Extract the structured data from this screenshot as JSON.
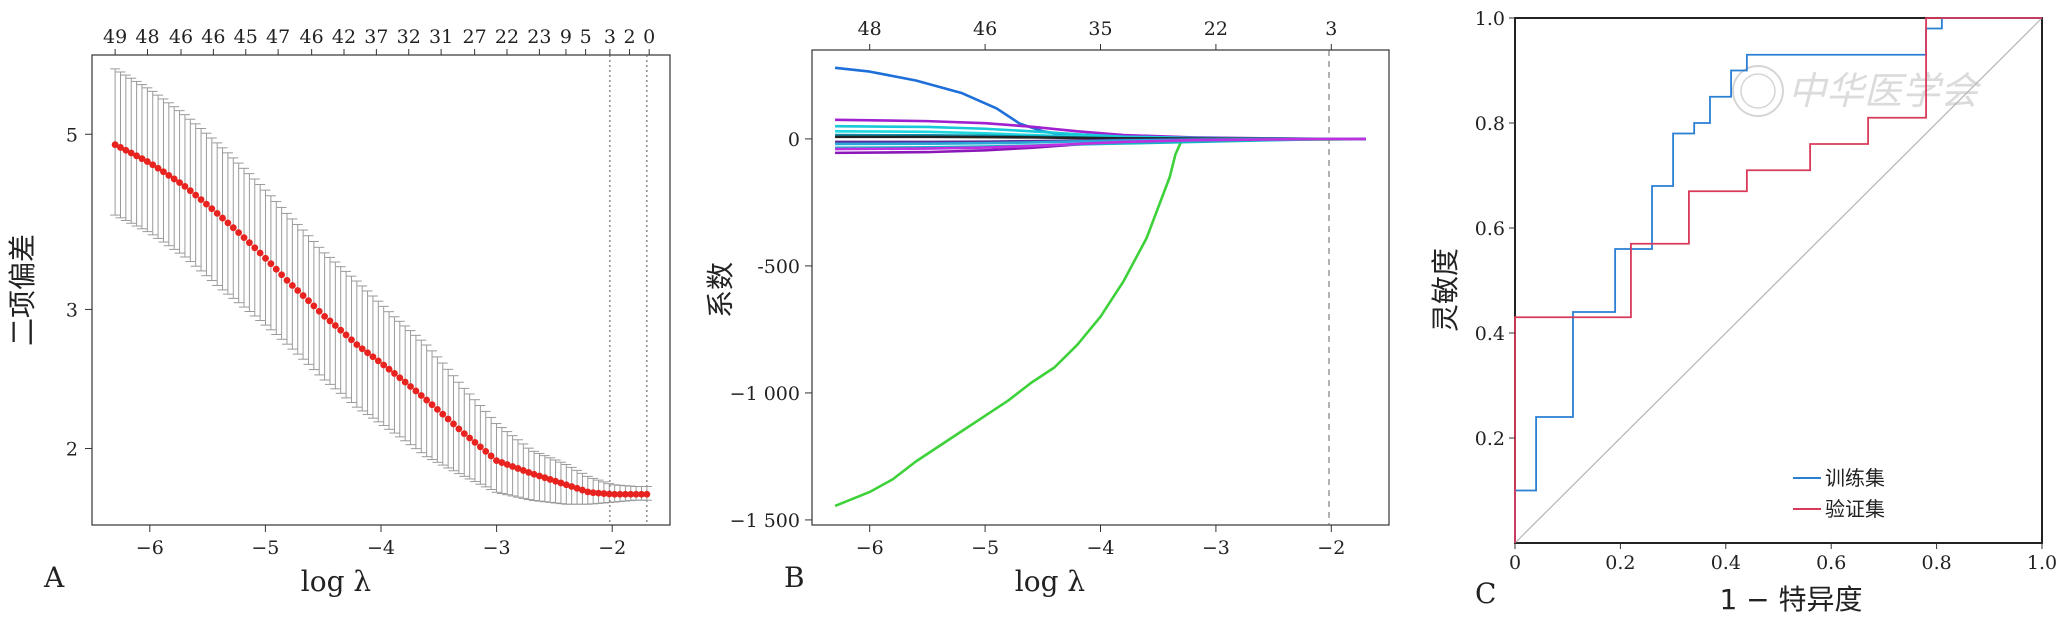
{
  "chart_data": [
    {
      "panel": "A",
      "type": "scatter",
      "xlabel": "log λ",
      "ylabel": "二项偏差",
      "xticks": [
        -6,
        -5,
        -4,
        -3,
        -2
      ],
      "yticks": [
        2,
        3,
        5
      ],
      "y_scale": "log",
      "xlim": [
        -6.5,
        -1.5
      ],
      "ylim": [
        1.6,
        6.3
      ],
      "top_labels": [
        "49",
        "48",
        "46",
        "46",
        "45",
        "47",
        "46",
        "42",
        "37",
        "32",
        "31",
        "27",
        "22",
        "23",
        "9",
        "5",
        "3",
        "2",
        "0"
      ],
      "top_label_x": [
        -6.3,
        -6.02,
        -5.73,
        -5.45,
        -5.17,
        -4.89,
        -4.6,
        -4.32,
        -4.04,
        -3.76,
        -3.48,
        -3.19,
        -2.91,
        -2.63,
        -2.4,
        -2.23,
        -2.02,
        -1.85,
        -1.68
      ],
      "vlines": [
        -2.02,
        -1.7
      ],
      "series": [
        {
          "x": [
            -6.3,
            -6.0,
            -5.7,
            -5.4,
            -5.1,
            -4.8,
            -4.5,
            -4.2,
            -3.9,
            -3.6,
            -3.3,
            -3.0,
            -2.7,
            -2.4,
            -2.2,
            -2.0,
            -1.8,
            -1.7
          ],
          "y": [
            4.85,
            4.6,
            4.3,
            3.95,
            3.6,
            3.25,
            2.95,
            2.7,
            2.5,
            2.3,
            2.1,
            1.93,
            1.86,
            1.8,
            1.76,
            1.75,
            1.75,
            1.75
          ],
          "lower": [
            3.95,
            3.75,
            3.5,
            3.2,
            2.95,
            2.7,
            2.45,
            2.25,
            2.1,
            1.95,
            1.85,
            1.76,
            1.72,
            1.7,
            1.7,
            1.71,
            1.72,
            1.72
          ],
          "upper": [
            6.05,
            5.7,
            5.3,
            4.85,
            4.4,
            3.95,
            3.55,
            3.25,
            2.95,
            2.7,
            2.4,
            2.15,
            1.99,
            1.91,
            1.84,
            1.8,
            1.79,
            1.79
          ]
        }
      ],
      "colors": {
        "points": "#e8231f",
        "errorbars": "#9a9a9a"
      }
    },
    {
      "panel": "B",
      "type": "line",
      "xlabel": "log λ",
      "ylabel": "系数",
      "xticks": [
        -6,
        -5,
        -4,
        -3,
        -2
      ],
      "yticks": [
        0,
        -500,
        -1000,
        -1500
      ],
      "ytick_labels": [
        "0",
        "-500",
        "−1 000",
        "−1 500"
      ],
      "xlim": [
        -6.5,
        -1.5
      ],
      "ylim": [
        -1520,
        350
      ],
      "top_labels": [
        "48",
        "46",
        "35",
        "22",
        "3"
      ],
      "top_label_x": [
        -6.0,
        -5.0,
        -4.0,
        -3.0,
        -2.0
      ],
      "vlines": [
        -2.02
      ],
      "series": [
        {
          "color": "#1e6fd9",
          "x": [
            -6.3,
            -6.0,
            -5.6,
            -5.2,
            -4.9,
            -4.7,
            -4.5,
            -4.3,
            -4.0,
            -3.5,
            -3.0,
            -2.5,
            -2.0,
            -1.7
          ],
          "y": [
            280,
            265,
            230,
            180,
            120,
            60,
            30,
            15,
            8,
            4,
            2,
            1,
            0,
            0
          ]
        },
        {
          "color": "#3dd13a",
          "x": [
            -6.3,
            -6.0,
            -5.8,
            -5.6,
            -5.4,
            -5.2,
            -5.0,
            -4.8,
            -4.6,
            -4.5,
            -4.4,
            -4.2,
            -4.0,
            -3.8,
            -3.6,
            -3.4,
            -3.35,
            -3.3,
            -3.0,
            -2.5,
            -2.0,
            -1.7
          ],
          "y": [
            -1445,
            -1390,
            -1340,
            -1270,
            -1210,
            -1150,
            -1090,
            -1030,
            -960,
            -930,
            -900,
            -810,
            -700,
            -560,
            -390,
            -150,
            -60,
            -10,
            -5,
            -3,
            -2,
            0
          ]
        },
        {
          "color": "#a020d0",
          "x": [
            -6.3,
            -5.5,
            -5.0,
            -4.6,
            -4.2,
            -3.8,
            -3.2,
            -2.5,
            -2.0,
            -1.7
          ],
          "y": [
            75,
            70,
            62,
            48,
            30,
            15,
            6,
            2,
            0,
            0
          ]
        },
        {
          "color": "#8a18b8",
          "x": [
            -6.3,
            -5.5,
            -5.0,
            -4.6,
            -4.2,
            -3.8,
            -3.2,
            -2.5,
            -2.0,
            -1.7
          ],
          "y": [
            -55,
            -52,
            -45,
            -35,
            -22,
            -12,
            -5,
            -2,
            0,
            0
          ]
        },
        {
          "color": "#17c8d8",
          "x": [
            -6.3,
            -5.5,
            -5.0,
            -4.6,
            -4.2,
            -3.8,
            -3.2,
            -2.5,
            -2.0,
            -1.7
          ],
          "y": [
            50,
            47,
            40,
            30,
            18,
            9,
            4,
            1,
            0,
            0
          ]
        },
        {
          "color": "#12b6c4",
          "x": [
            -6.3,
            -5.5,
            -5.0,
            -4.6,
            -4.2,
            -3.8,
            -3.2,
            -2.5,
            -2.0,
            -1.7
          ],
          "y": [
            -35,
            -33,
            -30,
            -26,
            -22,
            -18,
            -12,
            -5,
            0,
            0
          ]
        },
        {
          "color": "#20d8e0",
          "x": [
            -6.3,
            -5.5,
            -5.0,
            -4.6,
            -4.2,
            -3.8,
            -3.2,
            -2.5,
            -2.0,
            -1.7
          ],
          "y": [
            30,
            28,
            22,
            15,
            9,
            5,
            2,
            1,
            0,
            0
          ]
        },
        {
          "color": "#0f8fa8",
          "x": [
            -6.3,
            -5.5,
            -5.0,
            -4.6,
            -4.2,
            -3.8,
            -3.2,
            -2.5,
            -2.0,
            -1.7
          ],
          "y": [
            15,
            14,
            12,
            9,
            6,
            3,
            1,
            0,
            0,
            0
          ]
        },
        {
          "color": "#222222",
          "x": [
            -6.3,
            -5.5,
            -5.0,
            -4.6,
            -4.2,
            -3.8,
            -3.2,
            -2.5,
            -2.0,
            -1.7
          ],
          "y": [
            8,
            8,
            7,
            6,
            4,
            2,
            1,
            0,
            0,
            0
          ]
        },
        {
          "color": "#5a2a9a",
          "x": [
            -6.3,
            -5.5,
            -5.0,
            -4.6,
            -4.2,
            -3.8,
            -3.2,
            -2.5,
            -2.0,
            -1.7
          ],
          "y": [
            -12,
            -12,
            -11,
            -9,
            -7,
            -4,
            -2,
            -1,
            0,
            0
          ]
        },
        {
          "color": "#2aa8d8",
          "x": [
            -6.3,
            -5.5,
            -5.0,
            -4.6,
            -4.2,
            -3.8,
            -3.2,
            -2.5,
            -2.0,
            -1.7
          ],
          "y": [
            -20,
            -19,
            -17,
            -14,
            -10,
            -6,
            -3,
            -1,
            0,
            0
          ]
        },
        {
          "color": "#c030e0",
          "x": [
            -6.3,
            -5.5,
            -5.0,
            -4.6,
            -4.2,
            -3.8,
            -3.2,
            -2.5,
            -2.0,
            -1.7
          ],
          "y": [
            -40,
            -38,
            -34,
            -28,
            -20,
            -12,
            -5,
            -2,
            0,
            0
          ]
        }
      ]
    },
    {
      "panel": "C",
      "type": "line",
      "xlabel": "1 − 特异度",
      "ylabel": "灵敏度",
      "xticks": [
        0,
        0.2,
        0.4,
        0.6,
        0.8,
        1.0
      ],
      "xtick_labels": [
        "0",
        "0.2",
        "0.4",
        "0.6",
        "0.8",
        "1.0"
      ],
      "yticks": [
        0.2,
        0.4,
        0.6,
        0.8,
        1.0
      ],
      "ytick_labels": [
        "0.2",
        "0.4",
        "0.6",
        "0.8",
        "1.0"
      ],
      "xlim": [
        0,
        1
      ],
      "ylim": [
        0,
        1
      ],
      "legend_position": "bottom-right",
      "series": [
        {
          "name": "训练集",
          "color": "#2a7fd4",
          "x": [
            0,
            0,
            0.04,
            0.04,
            0.11,
            0.11,
            0.19,
            0.19,
            0.26,
            0.26,
            0.3,
            0.3,
            0.34,
            0.34,
            0.37,
            0.37,
            0.41,
            0.41,
            0.44,
            0.44,
            0.78,
            0.78,
            0.81,
            0.81,
            1.0
          ],
          "y": [
            0,
            0.1,
            0.1,
            0.24,
            0.24,
            0.44,
            0.44,
            0.56,
            0.56,
            0.68,
            0.68,
            0.78,
            0.78,
            0.8,
            0.8,
            0.85,
            0.85,
            0.9,
            0.9,
            0.93,
            0.93,
            0.98,
            0.98,
            1.0,
            1.0
          ]
        },
        {
          "name": "验证集",
          "color": "#d93a5a",
          "x": [
            0,
            0,
            0.22,
            0.22,
            0.33,
            0.33,
            0.44,
            0.44,
            0.56,
            0.56,
            0.67,
            0.67,
            0.78,
            0.78,
            1.0
          ],
          "y": [
            0,
            0.43,
            0.43,
            0.57,
            0.57,
            0.67,
            0.67,
            0.71,
            0.71,
            0.76,
            0.76,
            0.81,
            0.81,
            1.0,
            1.0
          ]
        }
      ],
      "reference_line": {
        "x": [
          0,
          1
        ],
        "y": [
          0,
          1
        ],
        "color": "#b0b0b0"
      },
      "watermark": "中华医学会"
    }
  ],
  "panel_labels": {
    "a": "A",
    "b": "B",
    "c": "C"
  }
}
